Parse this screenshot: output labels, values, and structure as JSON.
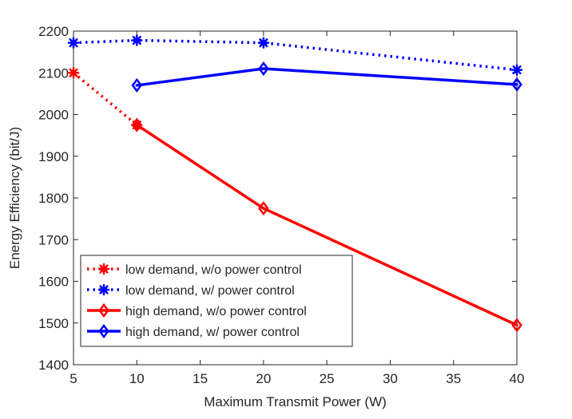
{
  "chart_data": {
    "type": "line",
    "xlabel": "Maximum Transmit Power (W)",
    "ylabel": "Energy Efficiency (bit/J)",
    "xlim": [
      5,
      40
    ],
    "ylim": [
      1400,
      2200
    ],
    "xticks": [
      5,
      10,
      15,
      20,
      25,
      30,
      35,
      40
    ],
    "yticks": [
      1400,
      1500,
      1600,
      1700,
      1800,
      1900,
      2000,
      2100,
      2200
    ],
    "grid": false,
    "legend_position": "bottom-left",
    "series": [
      {
        "name": "low demand, w/o power control",
        "color": "#ff0000",
        "line_style": "dotted",
        "marker": "asterisk",
        "points": [
          [
            5,
            2100
          ],
          [
            10,
            1975
          ]
        ]
      },
      {
        "name": "low demand, w/ power control",
        "color": "#0000ff",
        "line_style": "dotted",
        "marker": "asterisk",
        "points": [
          [
            5,
            2172
          ],
          [
            10,
            2178
          ],
          [
            20,
            2172
          ],
          [
            40,
            2107
          ]
        ]
      },
      {
        "name": "high demand, w/o power control",
        "color": "#ff0000",
        "line_style": "solid",
        "marker": "diamond",
        "points": [
          [
            10,
            1975
          ],
          [
            20,
            1775
          ],
          [
            40,
            1495
          ]
        ]
      },
      {
        "name": "high demand, w/ power control",
        "color": "#0000ff",
        "line_style": "solid",
        "marker": "diamond",
        "points": [
          [
            10,
            2070
          ],
          [
            20,
            2110
          ],
          [
            40,
            2072
          ]
        ]
      }
    ]
  }
}
